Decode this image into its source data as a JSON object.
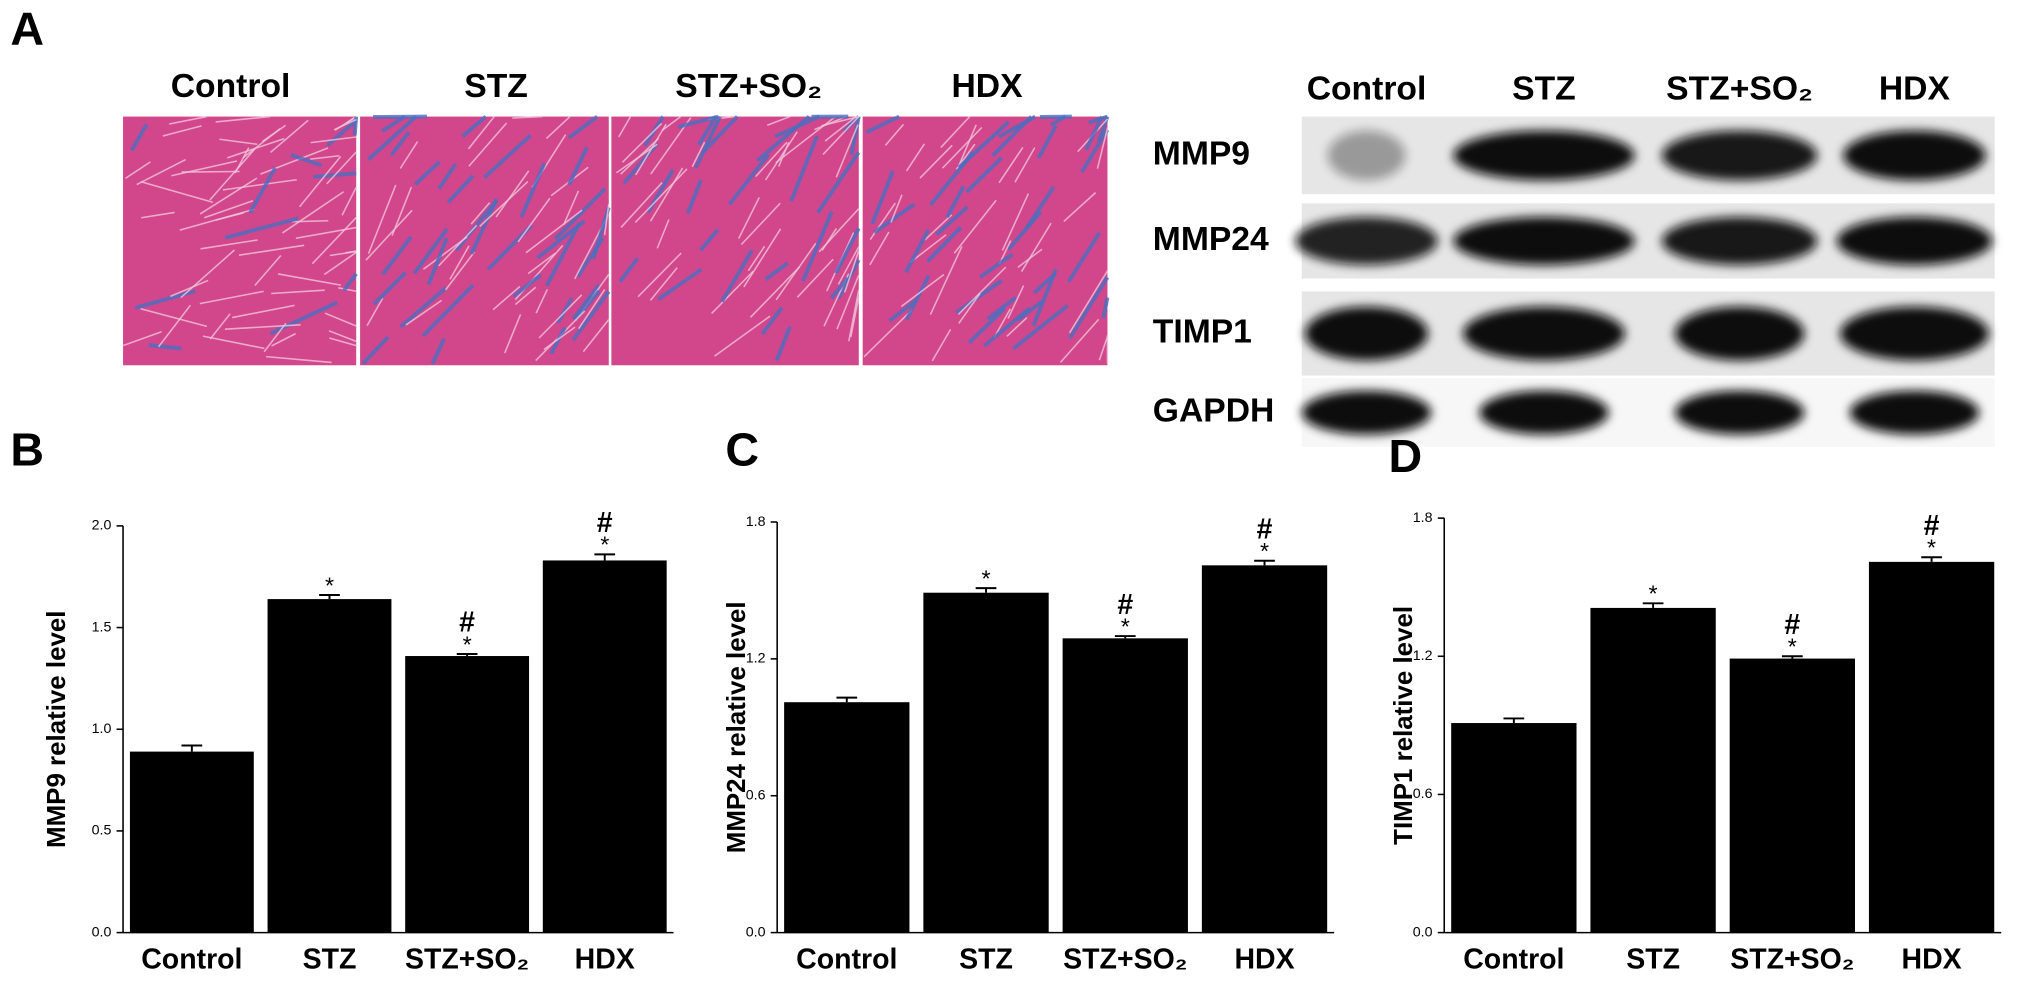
{
  "panel_a": {
    "label": "A",
    "histology_labels": [
      "Control",
      "STZ",
      "STZ+SO₂",
      "HDX"
    ],
    "blot_lanes": [
      "Control",
      "STZ",
      "STZ+SO₂",
      "HDX"
    ],
    "blot_rows": [
      "MMP9",
      "MMP24",
      "TIMP1",
      "GAPDH"
    ]
  },
  "chart_data": [
    {
      "type": "bar",
      "label": "B",
      "ylabel": "MMP9 relative level",
      "categories": [
        "Control",
        "STZ",
        "STZ+SO₂",
        "HDX"
      ],
      "values": [
        0.89,
        1.64,
        1.36,
        1.83
      ],
      "errors": [
        0.03,
        0.02,
        0.01,
        0.03
      ],
      "color": "#000000",
      "ylim": [
        0,
        2
      ],
      "yticks": [
        {
          "value": 0,
          "label": "0.0"
        },
        0.5,
        {
          "value": 1,
          "label": "1.0"
        },
        1.5,
        {
          "value": 2,
          "label": "2.0"
        }
      ],
      "annotations": [
        {
          "x": "STZ",
          "text": "*"
        },
        {
          "x": "STZ+SO₂",
          "text": "*"
        },
        {
          "x": "STZ+SO₂",
          "text": "#"
        },
        {
          "x": "HDX",
          "text": "*"
        },
        {
          "x": "HDX",
          "text": "#"
        }
      ]
    },
    {
      "type": "bar",
      "label": "C",
      "ylabel": "MMP24 relative level",
      "categories": [
        "Control",
        "STZ",
        "STZ+SO₂",
        "HDX"
      ],
      "values": [
        1.01,
        1.49,
        1.29,
        1.61
      ],
      "errors": [
        0.02,
        0.02,
        0.01,
        0.02
      ],
      "color": "#000000",
      "ylim": [
        0,
        1.8
      ],
      "yticks": [
        {
          "value": 0,
          "label": "0.0"
        },
        0.6,
        1.2,
        1.8
      ],
      "annotations": [
        {
          "x": "STZ",
          "text": "*"
        },
        {
          "x": "STZ+SO₂",
          "text": "*"
        },
        {
          "x": "STZ+SO₂",
          "text": "#"
        },
        {
          "x": "HDX",
          "text": "*"
        },
        {
          "x": "HDX",
          "text": "#"
        }
      ]
    },
    {
      "type": "bar",
      "label": "D",
      "ylabel": "TIMP1 relative level",
      "categories": [
        "Control",
        "STZ",
        "STZ+SO₂",
        "HDX"
      ],
      "values": [
        0.91,
        1.41,
        1.19,
        1.61
      ],
      "errors": [
        0.02,
        0.02,
        0.01,
        0.02
      ],
      "color": "#000000",
      "ylim": [
        0,
        1.8
      ],
      "yticks": [
        {
          "value": 0,
          "label": "0.0"
        },
        0.6,
        1.2,
        1.8
      ],
      "annotations": [
        {
          "x": "STZ",
          "text": "*"
        },
        {
          "x": "STZ+SO₂",
          "text": "*"
        },
        {
          "x": "STZ+SO₂",
          "text": "#"
        },
        {
          "x": "HDX",
          "text": "*"
        },
        {
          "x": "HDX",
          "text": "#"
        }
      ]
    }
  ]
}
